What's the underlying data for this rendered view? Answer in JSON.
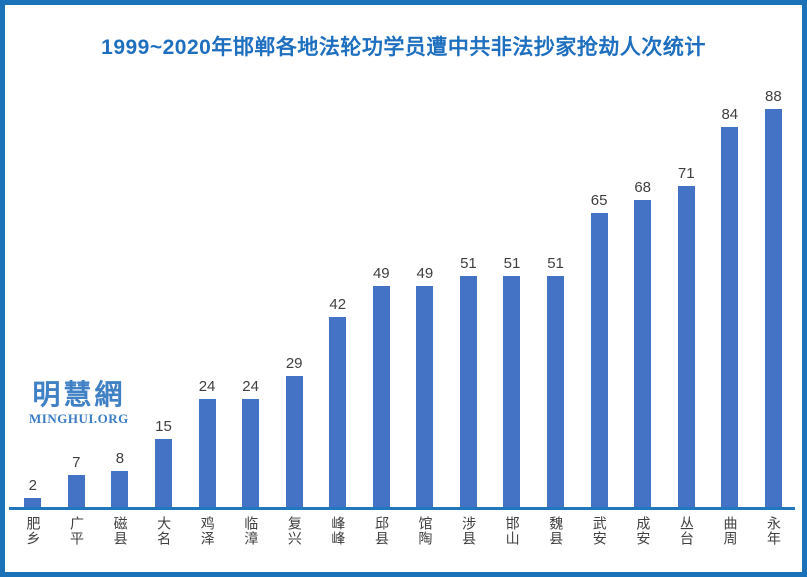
{
  "title": {
    "text": "1999~2020年邯郸各地法轮功学员遭中共非法抄家抢劫人次统计",
    "color": "#1e6fbf"
  },
  "watermark": {
    "cn": "明慧網",
    "en": "MINGHUI.ORG"
  },
  "chart_data": {
    "type": "bar",
    "title": "1999~2020年邯郸各地法轮功学员遭中共非法抄家抢劫人次统计",
    "categories": [
      "肥乡",
      "广平",
      "磁县",
      "大名",
      "鸡泽",
      "临漳",
      "复兴",
      "峰峰",
      "邱县",
      "馆陶",
      "涉县",
      "邯山",
      "魏县",
      "武安",
      "成安",
      "丛台",
      "曲周",
      "永年"
    ],
    "values": [
      2,
      7,
      8,
      15,
      24,
      24,
      29,
      42,
      49,
      49,
      51,
      51,
      51,
      65,
      68,
      71,
      84,
      88
    ],
    "xlabel": "",
    "ylabel": "",
    "ylim": [
      0,
      94
    ],
    "grid": false,
    "legend": false,
    "value_labels": true,
    "bar_color": "#4472c4",
    "axis_color": "#2077be",
    "frame_color": "#1b72b8",
    "label_color": "#404040"
  }
}
